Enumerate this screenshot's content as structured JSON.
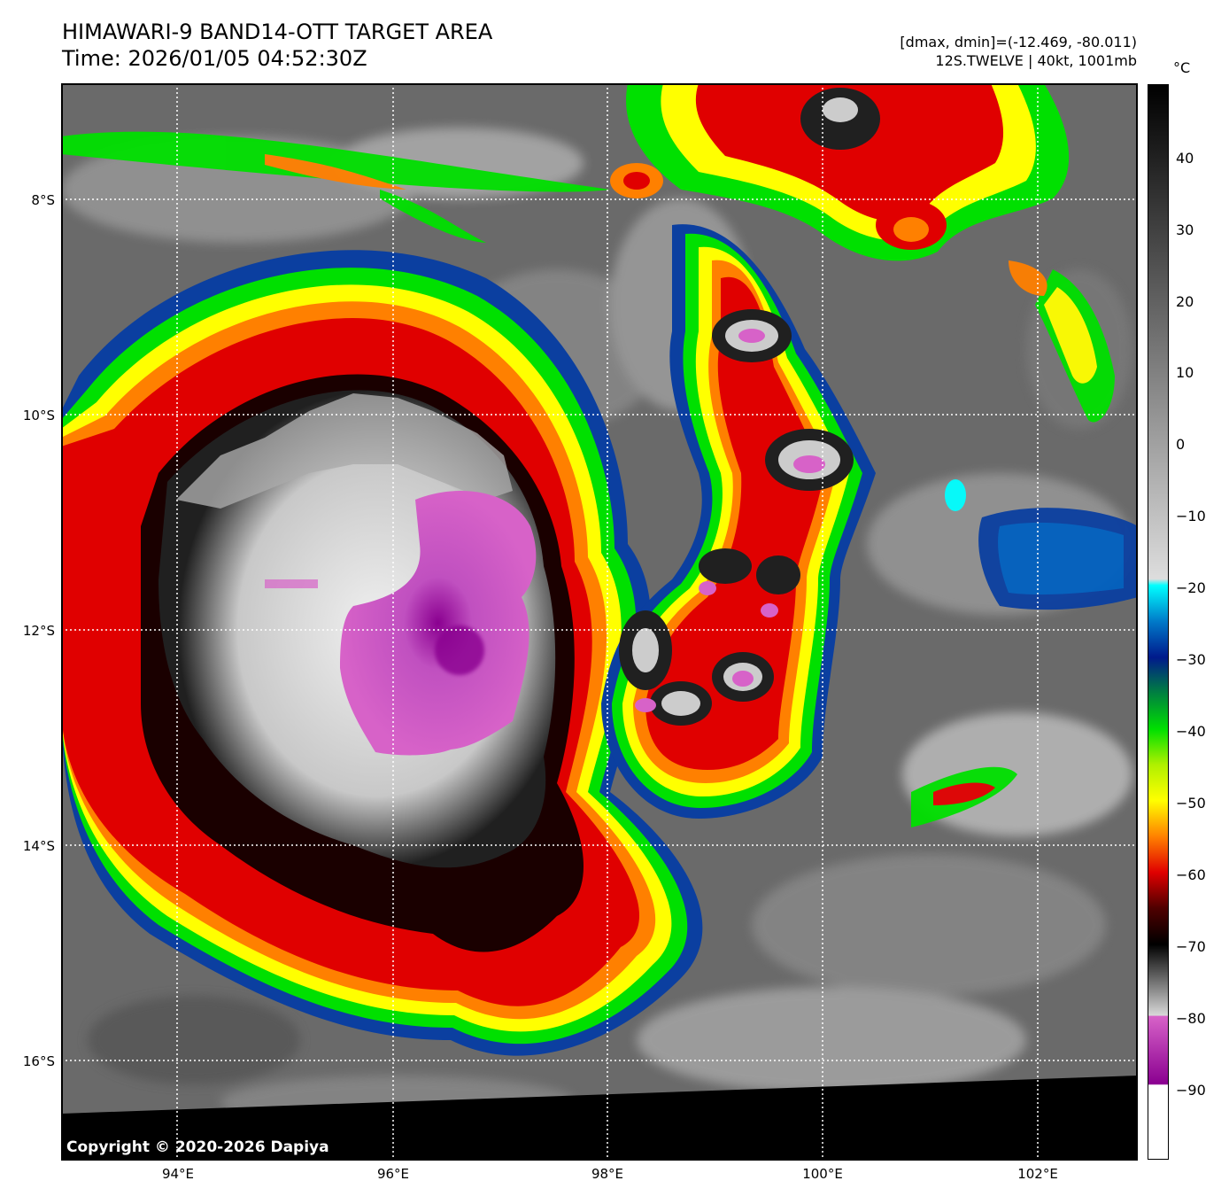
{
  "header": {
    "title_line1": "HIMAWARI-9 BAND14-OTT TARGET AREA",
    "title_line2": "Time: 2026/01/05 04:52:30Z",
    "info_line1": "[dmax, dmin]=(-12.469, -80.011)",
    "info_line2": "12S.TWELVE | 40kt, 1001mb"
  },
  "map": {
    "copyright": "Copyright © 2020-2026 Dapiya",
    "lat_labels": [
      "8°S",
      "10°S",
      "12°S",
      "14°S",
      "16°S"
    ],
    "lon_labels": [
      "94°E",
      "96°E",
      "98°E",
      "100°E",
      "102°E"
    ],
    "extent": {
      "lon_min": 92.9,
      "lon_max": 102.9,
      "lat_north": -6.92,
      "lat_south": -16.92
    },
    "storm_center": {
      "lon": 96.5,
      "lat": -12.0
    }
  },
  "colorbar": {
    "unit": "°C",
    "ticks": [
      "40",
      "30",
      "20",
      "10",
      "0",
      "−10",
      "−20",
      "−30",
      "−40",
      "−50",
      "−60",
      "−70",
      "−80",
      "−90"
    ],
    "tick_values": [
      40,
      30,
      20,
      10,
      0,
      -10,
      -20,
      -30,
      -40,
      -50,
      -60,
      -70,
      -80,
      -90
    ],
    "range": {
      "max": 50,
      "min": -100
    },
    "colors": {
      "pink": "#d762c8",
      "purple": "#8a0090",
      "red": "#e00000",
      "orange": "#ff8000",
      "yellow": "#ffff00",
      "green": "#00e000",
      "blue": "#001a8c",
      "cyan": "#00ffff",
      "darkred": "#200000"
    }
  }
}
